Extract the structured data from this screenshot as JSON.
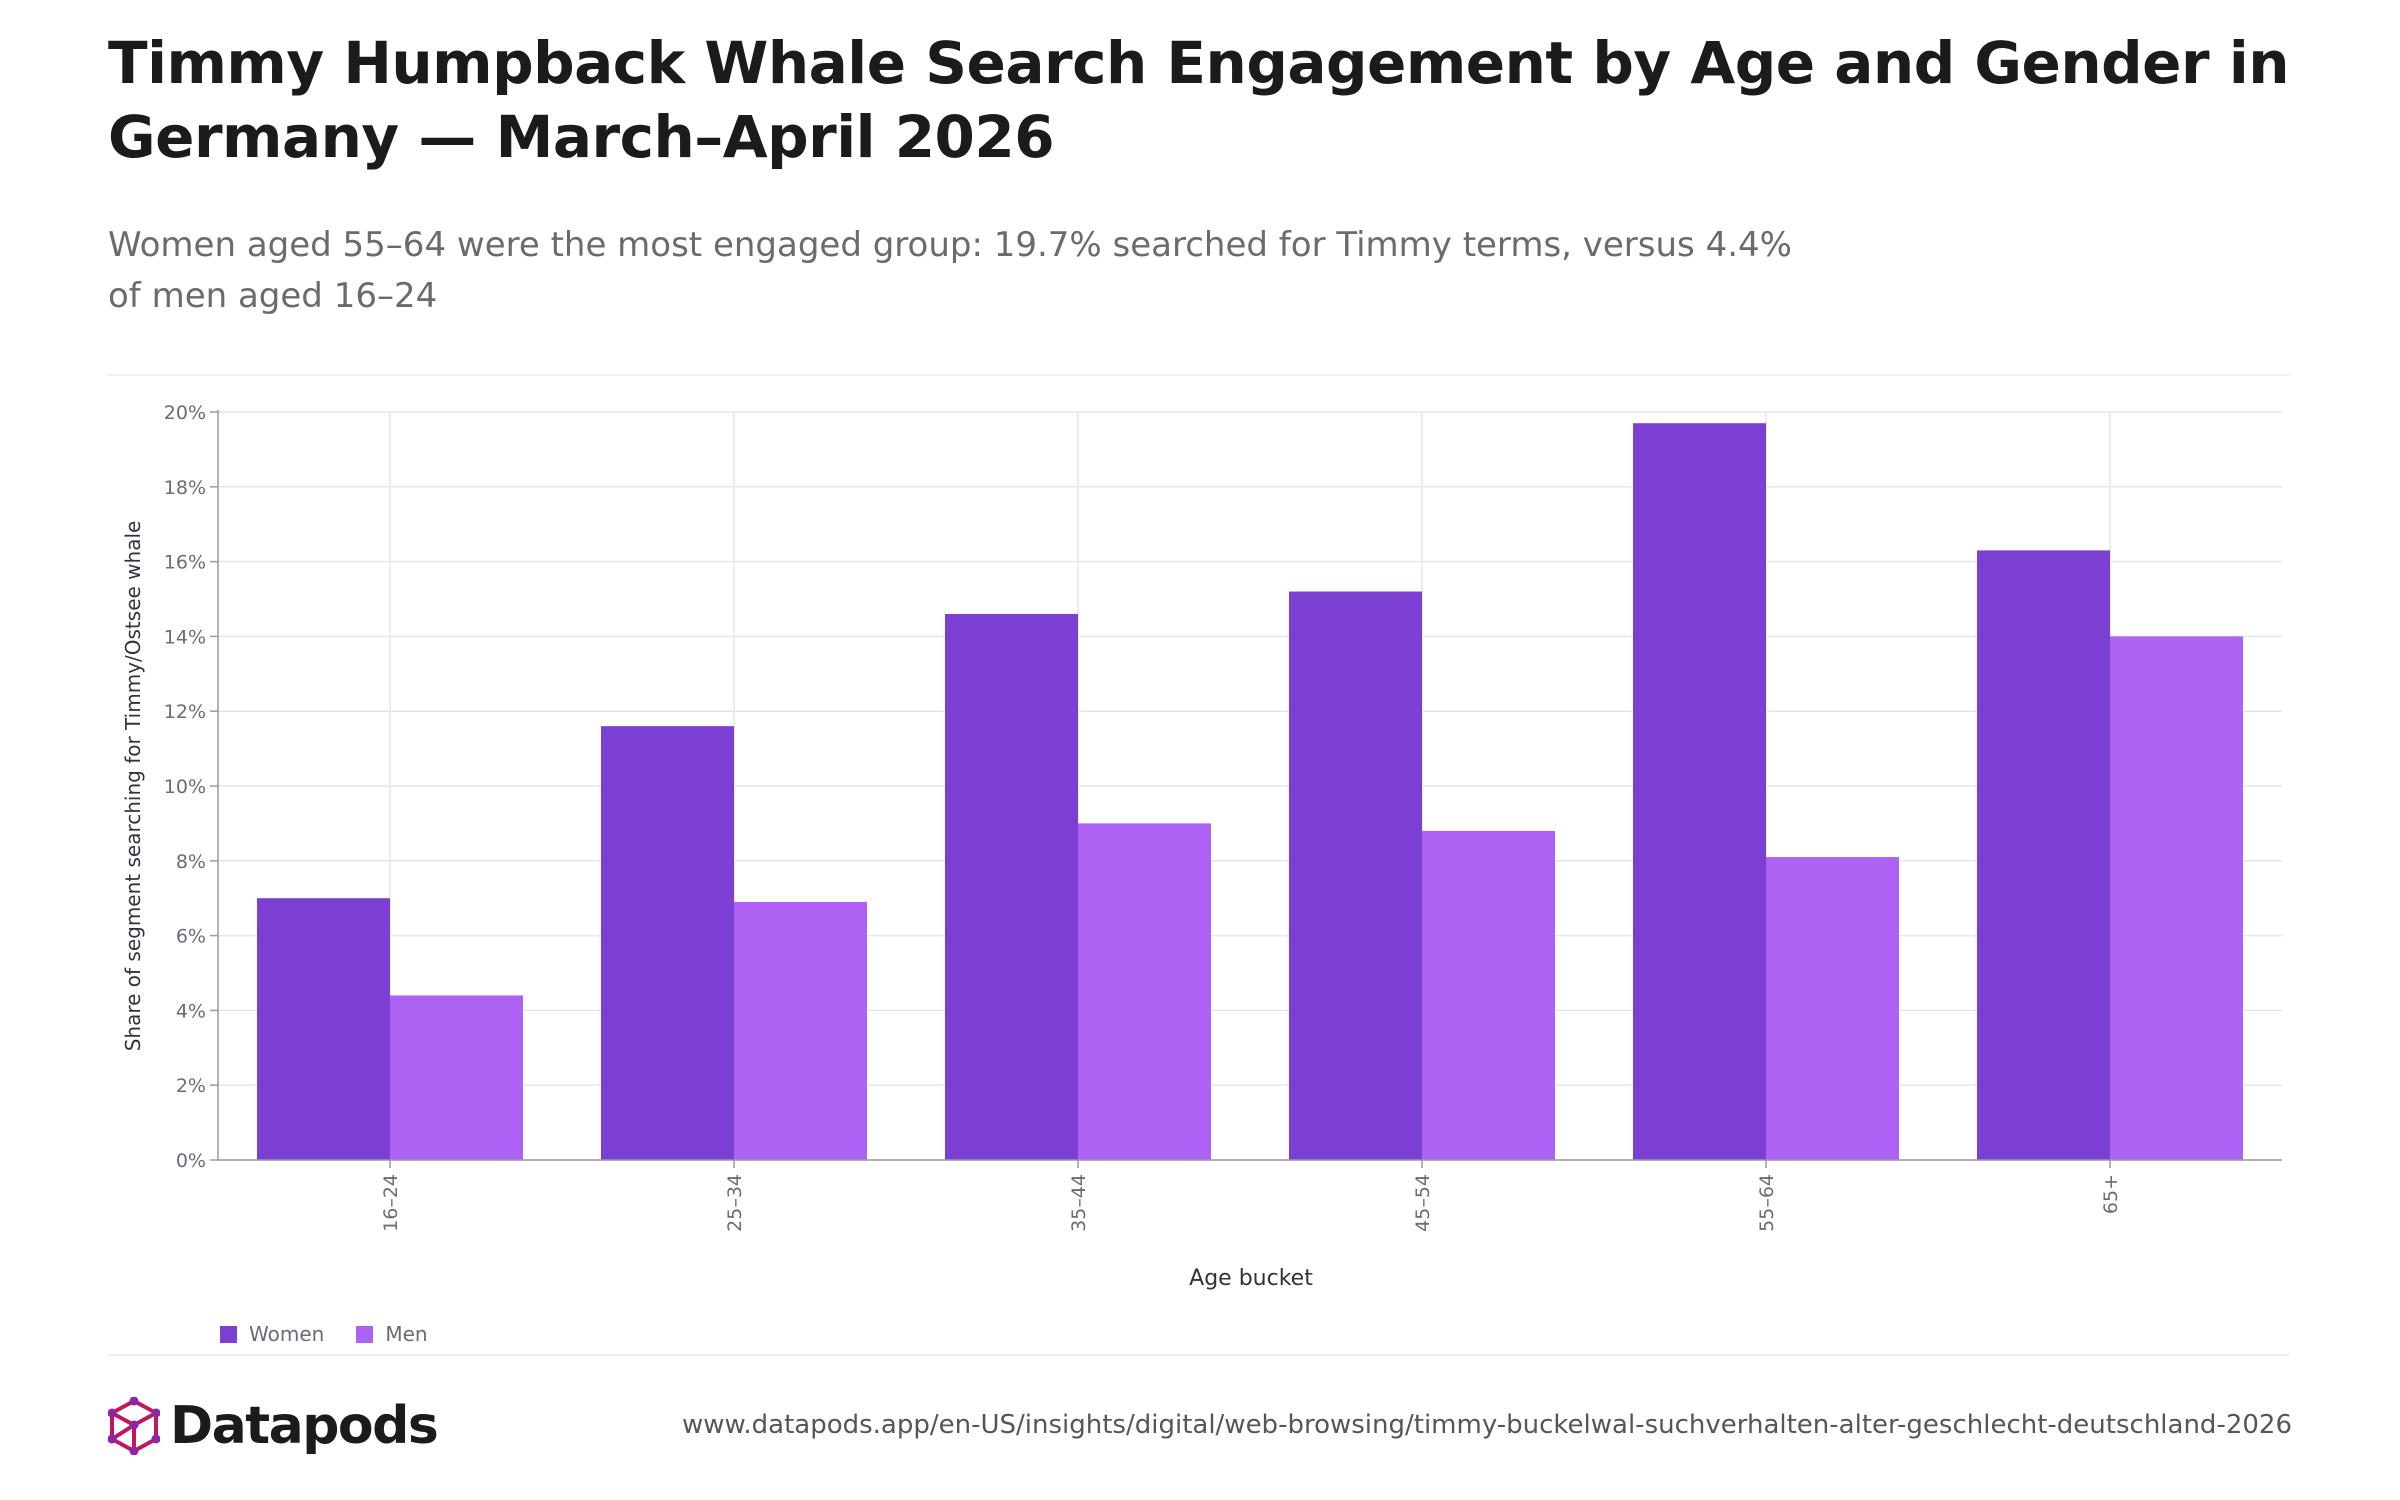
{
  "title": "Timmy Humpback Whale Search Engagement by Age and Gender in Germany — March–April 2026",
  "subtitle": "Women aged 55–64 were the most engaged group: 19.7% searched for Timmy terms, versus 4.4% of men aged 16–24",
  "brand": {
    "name": "Datapods",
    "icon": "datapods-logo-icon"
  },
  "footer": {
    "url": "www.datapods.app/en-US/insights/digital/web-browsing/timmy-buckelwal-suchverhalten-alter-geschlecht-deutschland-2026"
  },
  "colors": {
    "women": "#7b3fd4",
    "men": "#ad62f4",
    "logo": "#c2185b"
  },
  "chart_data": {
    "type": "bar",
    "xlabel": "Age bucket",
    "ylabel": "Share of segment searching for Timmy/Ostsee whale",
    "categories": [
      "16–24",
      "25–34",
      "35–44",
      "45–54",
      "55–64",
      "65+"
    ],
    "series": [
      {
        "name": "Women",
        "values": [
          7.0,
          11.6,
          14.6,
          15.2,
          19.7,
          16.3
        ]
      },
      {
        "name": "Men",
        "values": [
          4.4,
          6.9,
          9.0,
          8.8,
          8.1,
          14.0
        ]
      }
    ],
    "ylim": [
      0,
      20
    ],
    "yticks": [
      0,
      2,
      4,
      6,
      8,
      10,
      12,
      14,
      16,
      18,
      20
    ],
    "ytick_labels": [
      "0%",
      "2%",
      "4%",
      "6%",
      "8%",
      "10%",
      "12%",
      "14%",
      "16%",
      "18%",
      "20%"
    ],
    "grid": true,
    "legend_position": "bottom-left"
  }
}
